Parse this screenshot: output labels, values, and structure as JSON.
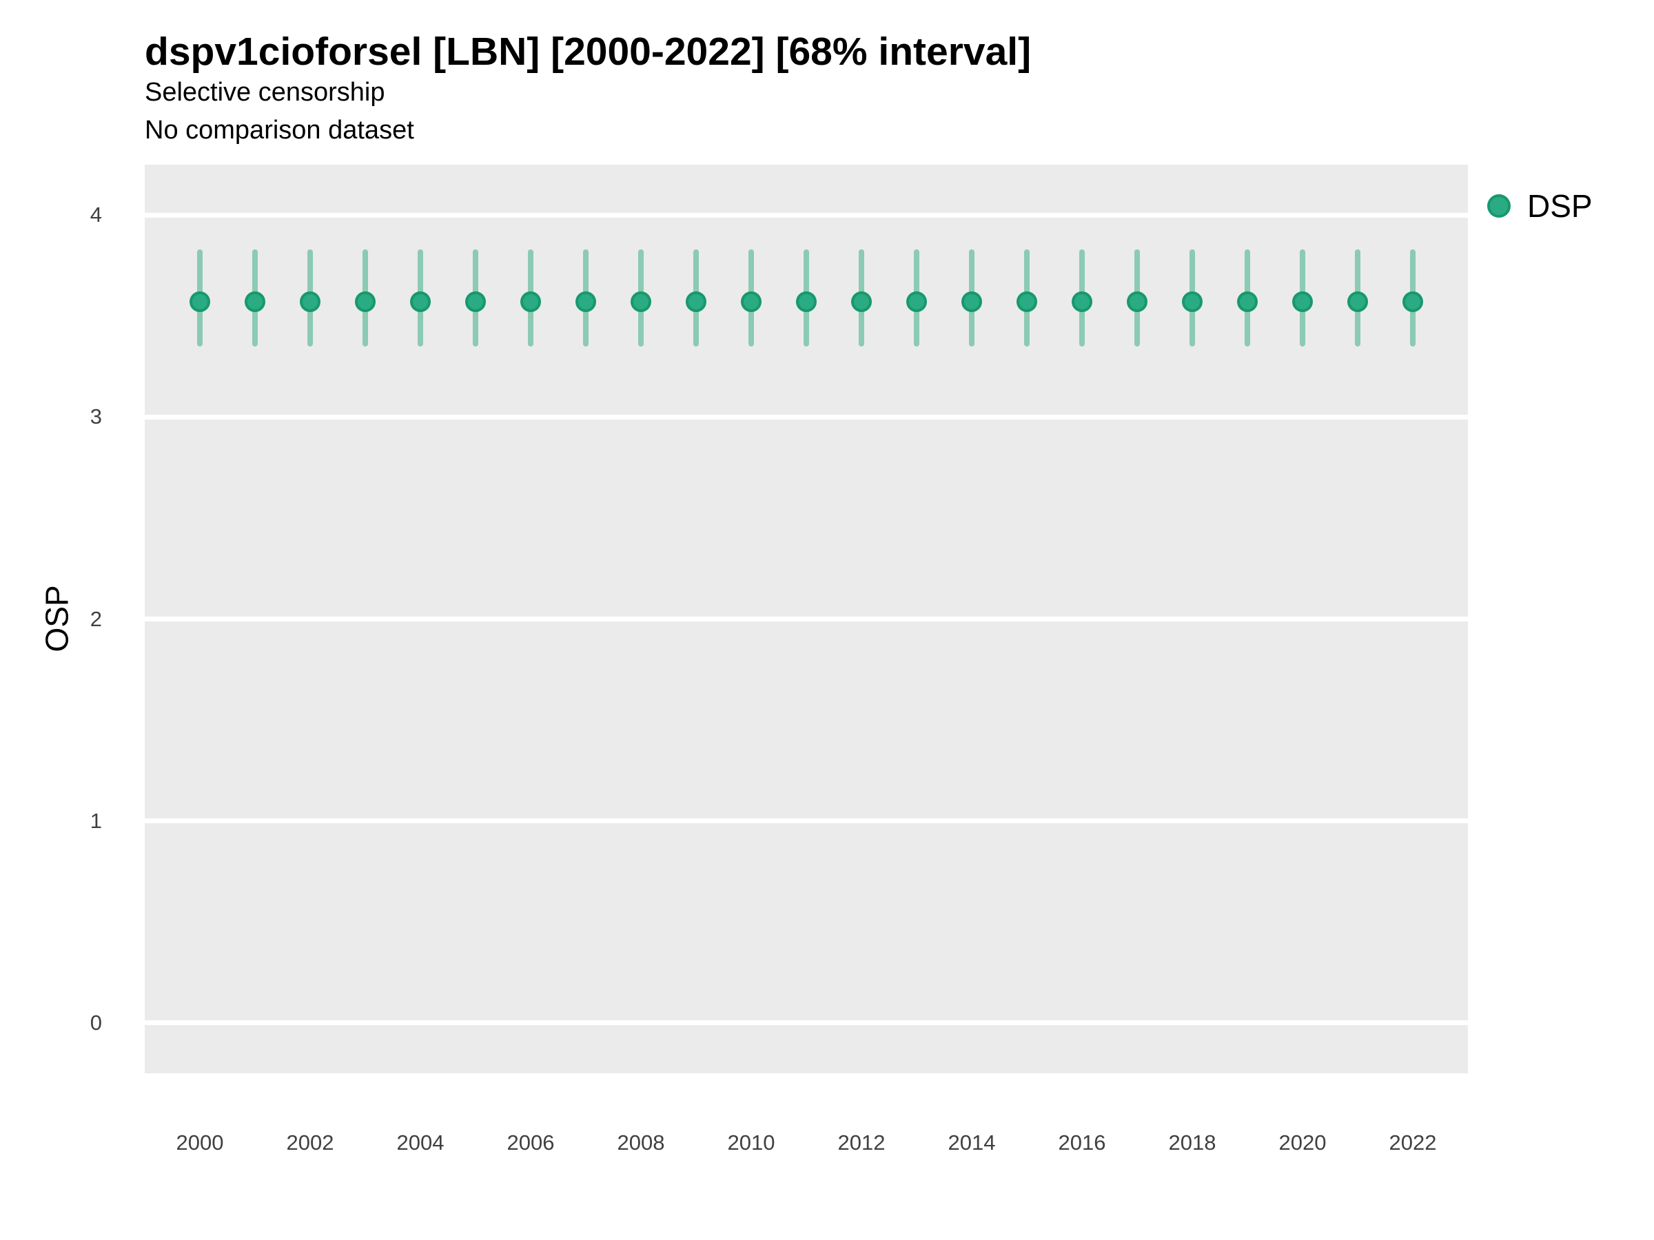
{
  "header": {
    "title": "dspv1cioforsel [LBN] [2000-2022] [68% interval]",
    "subtitle_line1": "Selective censorship",
    "subtitle_line2": "No comparison dataset"
  },
  "legend": {
    "position": "right",
    "items": [
      {
        "label": "DSP",
        "swatch_shape": "circle",
        "color": "#2bab83",
        "stroke": "#17996c"
      }
    ]
  },
  "axes": {
    "y_title": "OSP",
    "x_title": "",
    "y_tick_labels": [
      "4",
      "3",
      "2",
      "1",
      "0"
    ],
    "x_tick_labels": [
      "2000",
      "2002",
      "2004",
      "2006",
      "2008",
      "2010",
      "2012",
      "2014",
      "2016",
      "2018",
      "2020",
      "2022"
    ]
  },
  "colors": {
    "panel_background": "#ebebeb",
    "gridline": "#ffffff",
    "point_fill": "#2bab83",
    "point_stroke": "#17996c",
    "interval_bar": "#8bcab3",
    "axis_text": "#404040",
    "title_text": "#000000"
  },
  "chart_data": {
    "type": "scatter",
    "subtype": "pointrange",
    "title": "dspv1cioforsel [LBN] [2000-2022] [68% interval]",
    "subtitle": "Selective censorship / No comparison dataset",
    "xlabel": "",
    "ylabel": "OSP",
    "xlim": [
      1999,
      2023
    ],
    "ylim": [
      -0.25,
      4.25
    ],
    "y_major_gridlines": [
      0,
      1,
      2,
      3,
      4
    ],
    "x_tick_values": [
      2000,
      2002,
      2004,
      2006,
      2008,
      2010,
      2012,
      2014,
      2016,
      2018,
      2020,
      2022
    ],
    "grid": "major-y only, white lines on gray panel",
    "legend_position": "right",
    "interval_level": "68%",
    "series": [
      {
        "name": "DSP",
        "x": [
          2000,
          2001,
          2002,
          2003,
          2004,
          2005,
          2006,
          2007,
          2008,
          2009,
          2010,
          2011,
          2012,
          2013,
          2014,
          2015,
          2016,
          2017,
          2018,
          2019,
          2020,
          2021,
          2022
        ],
        "y": [
          3.57,
          3.57,
          3.57,
          3.57,
          3.57,
          3.57,
          3.57,
          3.57,
          3.57,
          3.57,
          3.57,
          3.57,
          3.57,
          3.57,
          3.57,
          3.57,
          3.57,
          3.57,
          3.57,
          3.57,
          3.57,
          3.57,
          3.57
        ],
        "y_lo": [
          3.35,
          3.35,
          3.35,
          3.35,
          3.35,
          3.35,
          3.35,
          3.35,
          3.35,
          3.35,
          3.35,
          3.35,
          3.35,
          3.35,
          3.35,
          3.35,
          3.35,
          3.35,
          3.35,
          3.35,
          3.35,
          3.35,
          3.35
        ],
        "y_hi": [
          3.83,
          3.83,
          3.83,
          3.83,
          3.83,
          3.83,
          3.83,
          3.83,
          3.83,
          3.83,
          3.83,
          3.83,
          3.83,
          3.83,
          3.83,
          3.83,
          3.83,
          3.83,
          3.83,
          3.83,
          3.83,
          3.83,
          3.83
        ]
      }
    ]
  }
}
